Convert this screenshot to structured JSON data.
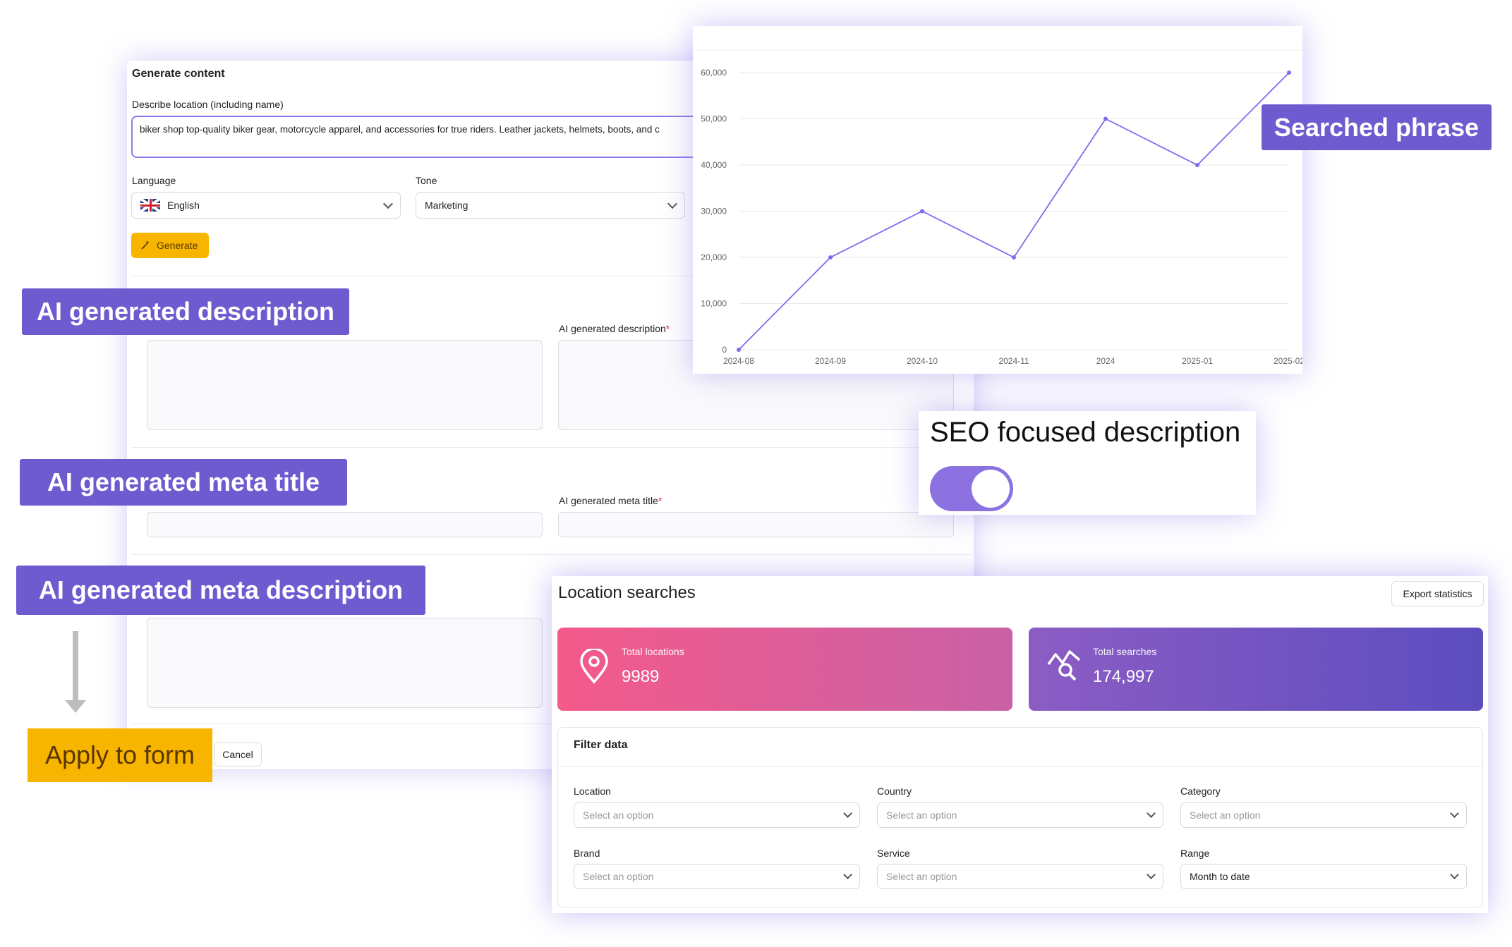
{
  "generate_card": {
    "title": "Generate content",
    "describe_label": "Describe location (including name)",
    "describe_value": "biker shop top-quality biker gear, motorcycle apparel, and accessories for true riders. Leather jackets, helmets, boots, and c",
    "language_label": "Language",
    "language_value": "English",
    "tone_label": "Tone",
    "tone_value": "Marketing",
    "generate_button": "Generate",
    "ai_description_label": "AI generated description",
    "ai_meta_title_label": "AI generated meta title",
    "cancel_button": "Cancel"
  },
  "callouts": {
    "ai_description": "AI generated description",
    "ai_meta_title": "AI generated meta title",
    "ai_meta_description": "AI generated meta description",
    "searched_phrase": "Searched phrase",
    "apply_to_form": "Apply to form"
  },
  "seo_toggle": {
    "label": "SEO focused description",
    "on": true
  },
  "location_searches": {
    "title": "Location searches",
    "export_button": "Export statistics",
    "total_locations_label": "Total locations",
    "total_locations_value": "9989",
    "total_searches_label": "Total searches",
    "total_searches_value": "174,997",
    "filter_title": "Filter data",
    "filters": [
      {
        "label": "Location",
        "value": "Select an option"
      },
      {
        "label": "Country",
        "value": "Select an option"
      },
      {
        "label": "Category",
        "value": "Select an option"
      },
      {
        "label": "Brand",
        "value": "Select an option"
      },
      {
        "label": "Service",
        "value": "Select an option"
      },
      {
        "label": "Range",
        "value": "Month to date"
      }
    ]
  },
  "colors": {
    "accent": "#6e5bd0",
    "line": "#7b6cf0",
    "warning": "#f7b500",
    "card_pink": "#f0578a",
    "card_purple": "#6552c2"
  },
  "chart_data": {
    "type": "line",
    "x": [
      "2024-08",
      "2024-09",
      "2024-10",
      "2024-11",
      "2024",
      "2025-01",
      "2025-02"
    ],
    "series": [
      {
        "values": [
          0,
          20000,
          30000,
          20000,
          50000,
          40000,
          60000
        ]
      }
    ],
    "yticks": [
      "0",
      "10,000",
      "20,000",
      "30,000",
      "40,000",
      "50,000",
      "60,000"
    ],
    "ylim": [
      0,
      60000
    ],
    "grid": true
  }
}
